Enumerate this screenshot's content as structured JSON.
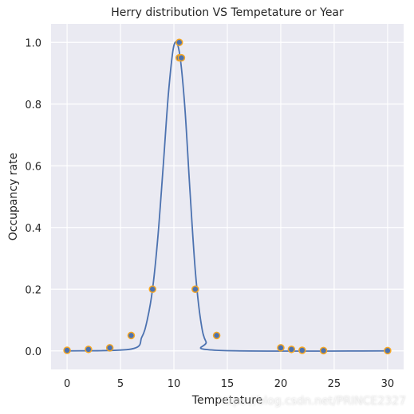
{
  "chart_data": {
    "type": "scatter",
    "title": "Herry distribution VS Tempetature or Year",
    "xlabel": "Tempetature",
    "ylabel": "Occupancy rate",
    "xlim": [
      -1.5,
      31.5
    ],
    "ylim": [
      -0.06,
      1.06
    ],
    "xticks": [
      0,
      5,
      10,
      15,
      20,
      25,
      30
    ],
    "yticks": [
      0.0,
      0.2,
      0.4,
      0.6,
      0.8,
      1.0
    ],
    "xtick_labels": [
      "0",
      "5",
      "10",
      "15",
      "20",
      "25",
      "30"
    ],
    "ytick_labels": [
      "0.0",
      "0.2",
      "0.4",
      "0.6",
      "0.8",
      "1.0"
    ],
    "grid": true,
    "series": [
      {
        "kind": "scatter",
        "x": [
          0,
          2,
          4,
          6,
          8,
          10.5,
          10.5,
          10.7,
          12,
          14,
          20,
          21,
          22,
          24,
          30
        ],
        "y": [
          0.002,
          0.005,
          0.01,
          0.05,
          0.2,
          1.0,
          0.95,
          0.95,
          0.2,
          0.05,
          0.01,
          0.005,
          0.002,
          0.001,
          0.001
        ]
      },
      {
        "kind": "line",
        "x": [
          0,
          6,
          7,
          7.5,
          8,
          8.5,
          9,
          9.5,
          10,
          10.5,
          11,
          11.5,
          12,
          12.5,
          13,
          14,
          30
        ],
        "y": [
          0.0,
          0.006,
          0.045,
          0.1,
          0.2,
          0.37,
          0.6,
          0.84,
          0.99,
          0.97,
          0.8,
          0.52,
          0.26,
          0.1,
          0.03,
          0.002,
          0.0
        ]
      }
    ],
    "colors": {
      "background": "#EAEAF2",
      "grid": "#FFFFFF",
      "line": "#4C72B0",
      "marker_face": "#4C72B0",
      "marker_edge": "#F5A623",
      "text": "#262626"
    }
  },
  "watermark": "https://blog.csdn.net/PRINCE2327"
}
